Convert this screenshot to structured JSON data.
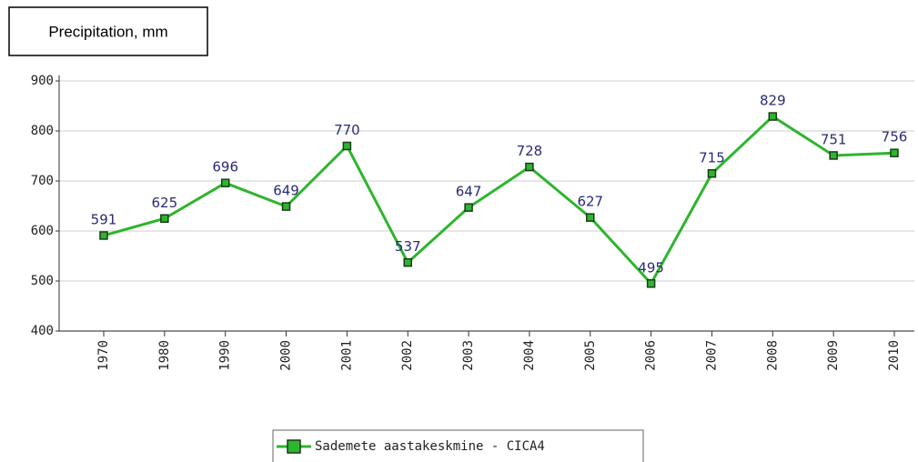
{
  "chart_data": {
    "type": "line",
    "title": "Precipitation, mm",
    "categories": [
      "1970",
      "1980",
      "1990",
      "2000",
      "2001",
      "2002",
      "2003",
      "2004",
      "2005",
      "2006",
      "2007",
      "2008",
      "2009",
      "2010"
    ],
    "series": [
      {
        "name": "Sademete aastakeskmine - CICA4",
        "color": "#2db52d",
        "values": [
          591,
          625,
          696,
          649,
          770,
          537,
          647,
          728,
          627,
          495,
          715,
          829,
          751,
          756
        ]
      }
    ],
    "ylim": [
      400,
      900
    ],
    "yticks": [
      400,
      500,
      600,
      700,
      800,
      900
    ],
    "grid": true
  }
}
